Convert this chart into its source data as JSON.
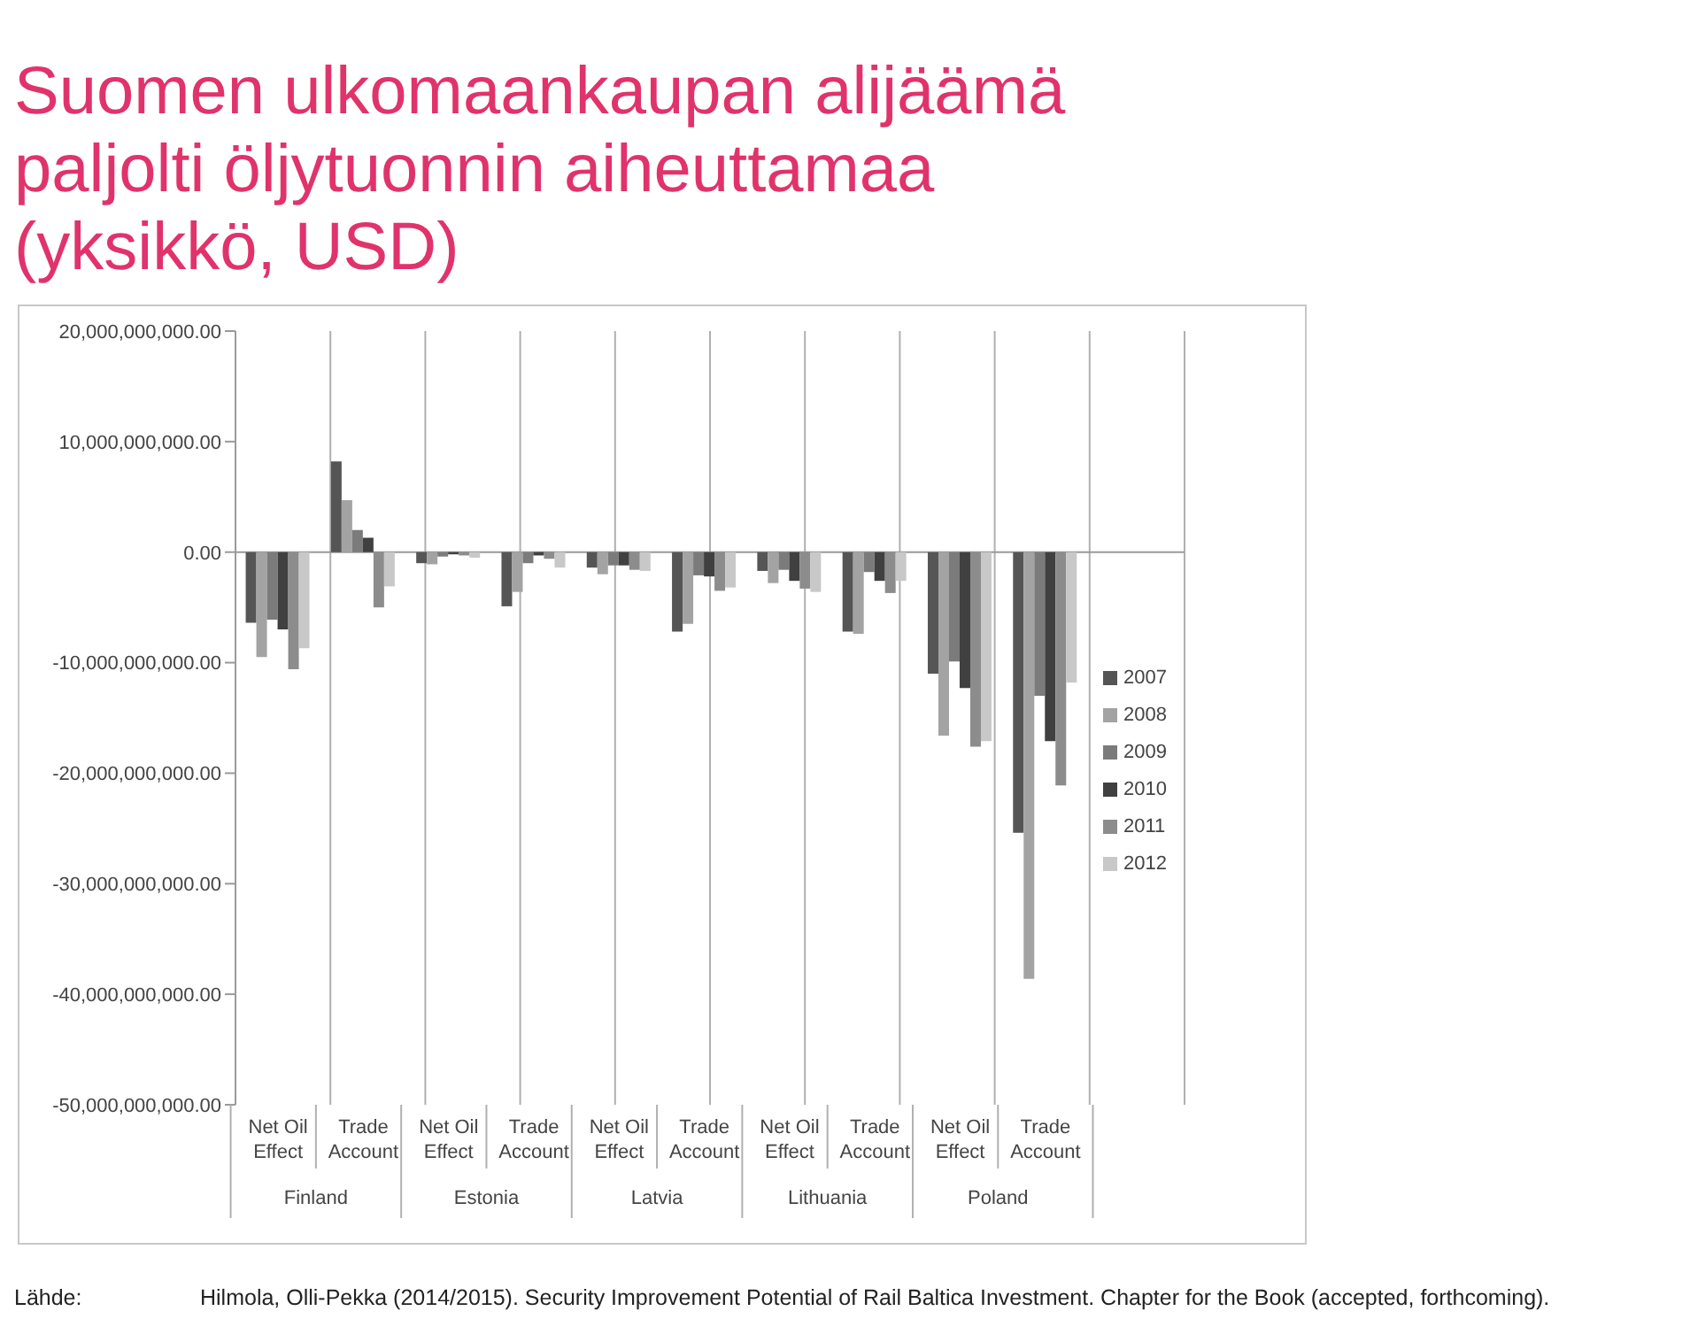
{
  "chart_data": {
    "type": "bar",
    "title": "Suomen ulkomaankaupan alijäämä paljolti öljytuonnin aiheuttamaa (yksikkö, USD)",
    "categories": [
      "Net Oil Effect",
      "Trade Account",
      "Net Oil Effect",
      "Trade Account",
      "Net Oil Effect",
      "Trade Account",
      "Net Oil Effect",
      "Trade Account",
      "Net Oil Effect",
      "Trade Account"
    ],
    "series": [
      {
        "name": "2007",
        "color": "#555555",
        "values": [
          -6400000000,
          8200000000,
          -1000000000,
          -4900000000,
          -1400000000,
          -7200000000,
          -1700000000,
          -7200000000,
          -11000000000,
          -25400000000
        ]
      },
      {
        "name": "2008",
        "color": "#a3a3a3",
        "values": [
          -9500000000,
          4700000000,
          -1100000000,
          -3600000000,
          -2000000000,
          -6500000000,
          -2800000000,
          -7400000000,
          -16600000000,
          -38600000000
        ]
      },
      {
        "name": "2009",
        "color": "#7b7b7b",
        "values": [
          -6100000000,
          2000000000,
          -400000000,
          -1000000000,
          -1200000000,
          -2100000000,
          -1600000000,
          -1800000000,
          -9900000000,
          -13000000000
        ]
      },
      {
        "name": "2010",
        "color": "#404040",
        "values": [
          -7000000000,
          1300000000,
          -200000000,
          -300000000,
          -1200000000,
          -2200000000,
          -2600000000,
          -2600000000,
          -12300000000,
          -17100000000
        ]
      },
      {
        "name": "2011",
        "color": "#8c8c8c",
        "values": [
          -10600000000,
          -5000000000,
          -300000000,
          -600000000,
          -1600000000,
          -3500000000,
          -3300000000,
          -3700000000,
          -17600000000,
          -21100000000
        ]
      },
      {
        "name": "2012",
        "color": "#c8c8c8",
        "values": [
          -8700000000,
          -3100000000,
          -500000000,
          -1400000000,
          -1700000000,
          -3200000000,
          -3600000000,
          -2600000000,
          -17100000000,
          -11800000000
        ]
      }
    ],
    "ylim": [
      -50000000000,
      20000000000
    ],
    "yticks": [
      {
        "value": 20000000000,
        "label": "20,000,000,000.00"
      },
      {
        "value": 10000000000,
        "label": "10,000,000,000.00"
      },
      {
        "value": 0,
        "label": "0.00"
      },
      {
        "value": -10000000000,
        "label": "-10,000,000,000.00"
      },
      {
        "value": -20000000000,
        "label": "-20,000,000,000.00"
      },
      {
        "value": -30000000000,
        "label": "-30,000,000,000.00"
      },
      {
        "value": -40000000000,
        "label": "-40,000,000,000.00"
      },
      {
        "value": -50000000000,
        "label": "-50,000,000,000.00"
      }
    ],
    "annotations": [
      "Finland",
      "Estonia",
      "Latvia",
      "Lithuania",
      "Poland",
      "Lähde:",
      "Hilmola, Olli-Pekka (2014/2015). Security Improvement Potential of Rail Baltica Investment. Chapter for the Book (accepted, forthcoming)."
    ],
    "grid": "x",
    "legend": "right"
  }
}
